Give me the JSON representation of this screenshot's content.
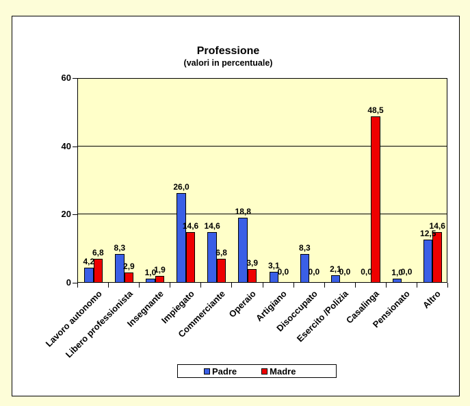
{
  "page": {
    "background": "#FDFDD8"
  },
  "chart_data": {
    "type": "bar",
    "title": "Professione",
    "subtitle": "(valori in percentuale)",
    "categories": [
      "Lavoro autonomo",
      "Libero professionista",
      "Insegnante",
      "Impiegato",
      "Commerciante",
      "Operaio",
      "Artigiano",
      "Disoccupato",
      "Esercito /Polizia",
      "Casalinga",
      "Pensionato",
      "Altro"
    ],
    "series": [
      {
        "name": "Padre",
        "color": "#3A5FE6",
        "values": [
          4.2,
          8.3,
          1.0,
          26.0,
          14.6,
          18.8,
          3.1,
          8.3,
          2.1,
          0.0,
          1.0,
          12.5
        ]
      },
      {
        "name": "Madre",
        "color": "#EE0000",
        "values": [
          6.8,
          2.9,
          1.9,
          14.6,
          6.8,
          3.9,
          0.0,
          0.0,
          0.0,
          48.5,
          0.0,
          14.6
        ]
      }
    ],
    "data_labels": [
      [
        "4,2",
        "8,3",
        "1,0",
        "26,0",
        "14,6",
        "18,8",
        "3,1",
        "8,3",
        "2,1",
        "0,0",
        "1,0",
        "12,5"
      ],
      [
        "6,8",
        "2,9",
        "1,9",
        "14,6",
        "6,8",
        "3,9",
        "0,0",
        "0,0",
        "0,0",
        "48,5",
        "0,0",
        "14,6"
      ]
    ],
    "ylim": [
      0,
      60
    ],
    "yticks": [
      0,
      20,
      40,
      60
    ],
    "grid": true,
    "legend_position": "bottom",
    "plot_background": "#FFFFC9",
    "decimal_separator": ","
  }
}
